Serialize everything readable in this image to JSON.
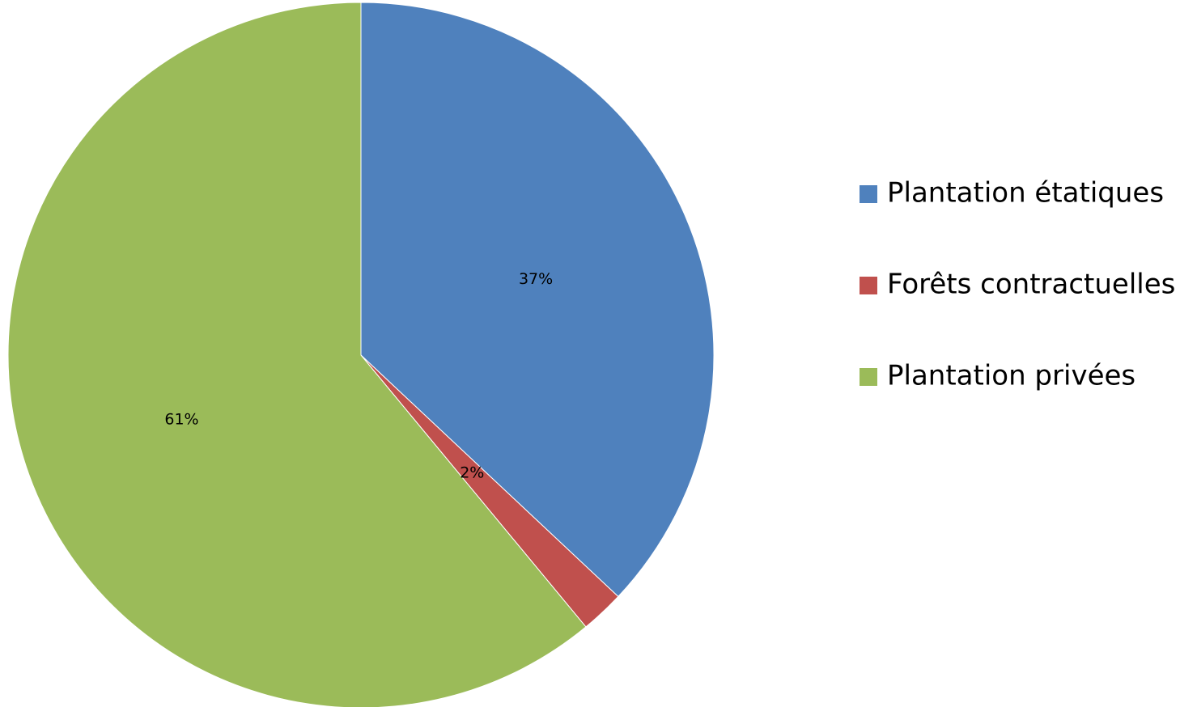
{
  "chart_data": {
    "type": "pie",
    "title": "",
    "legend_position": "right",
    "start": "top",
    "direction": "clockwise",
    "slices": [
      {
        "label": "Plantation étatiques",
        "value": 37,
        "display": "37%",
        "color": "#4F81BD"
      },
      {
        "label": "Forêts contractuelles",
        "value": 2,
        "display": "2%",
        "color": "#C0504D"
      },
      {
        "label": "Plantation privées",
        "value": 61,
        "display": "61%",
        "color": "#9BBB59"
      }
    ]
  }
}
